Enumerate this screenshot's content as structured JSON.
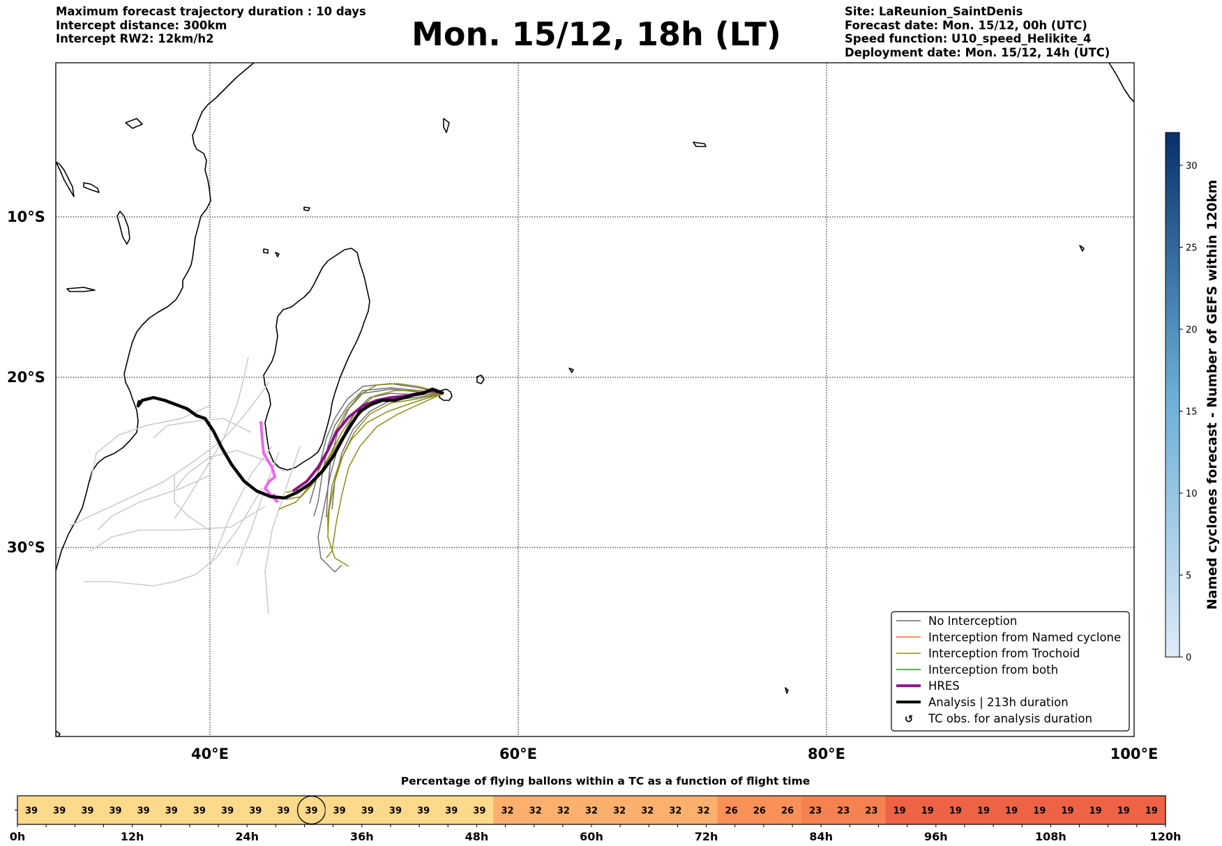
{
  "header": {
    "left_lines": [
      "Maximum forecast trajectory duration : 10 days",
      "Intercept distance: 300km",
      "Intercept RW2: 12km/h2"
    ],
    "title": "Mon. 15/12, 18h (LT)",
    "right_lines": [
      "Site: LaReunion_SaintDenis",
      "Forecast date: Mon. 15/12, 00h (UTC)",
      "Speed function: U10_speed_Helikite_4",
      "Deployment date: Mon. 15/12, 14h (UTC)"
    ]
  },
  "map": {
    "lat_labels": [
      "10°S",
      "20°S",
      "30°S"
    ],
    "lon_labels": [
      "40°E",
      "60°E",
      "80°E",
      "100°E"
    ],
    "legend": [
      {
        "label": "No Interception",
        "color": "#6b6b6b",
        "style": "thin"
      },
      {
        "label": "Interception from Named cyclone",
        "color": "#ff6a2a",
        "style": "thin"
      },
      {
        "label": "Interception from Trochoid",
        "color": "#8b8b1a",
        "style": "thin"
      },
      {
        "label": "Interception from both",
        "color": "#1a9a1a",
        "style": "thin"
      },
      {
        "label": "HRES",
        "color": "#8b128b",
        "style": "thick"
      },
      {
        "label": "Analysis | 213h duration",
        "color": "#000000",
        "style": "thick"
      },
      {
        "label": "TC obs. for analysis duration",
        "color": "#000000",
        "style": "symbol",
        "symbol": "↺"
      }
    ]
  },
  "colorbar": {
    "label": "Named cyclones forecast - Number of GEFS within 120km",
    "ticks": [
      "0",
      "5",
      "10",
      "15",
      "20",
      "25",
      "30"
    ],
    "min": 0,
    "max": 32,
    "color_low": "#deebf7",
    "color_high": "#08306b"
  },
  "timebar": {
    "title": "Percentage of flying ballons within a TC as a function of flight time",
    "values": [
      "39",
      "39",
      "39",
      "39",
      "39",
      "39",
      "39",
      "39",
      "39",
      "39",
      "39",
      "39",
      "39",
      "39",
      "39",
      "39",
      "39",
      "32",
      "32",
      "32",
      "32",
      "32",
      "32",
      "32",
      "32",
      "26",
      "26",
      "26",
      "23",
      "23",
      "23",
      "19",
      "19",
      "19",
      "19",
      "19",
      "19",
      "19",
      "19",
      "19",
      "19"
    ],
    "highlight_index": 10,
    "tick_labels": [
      "0h",
      "12h",
      "24h",
      "36h",
      "48h",
      "60h",
      "72h",
      "84h",
      "96h",
      "108h",
      "120h"
    ],
    "colors": {
      "39": "#fdd98b",
      "32": "#fbb06e",
      "26": "#f99158",
      "23": "#f58250",
      "19": "#ee6346"
    }
  }
}
